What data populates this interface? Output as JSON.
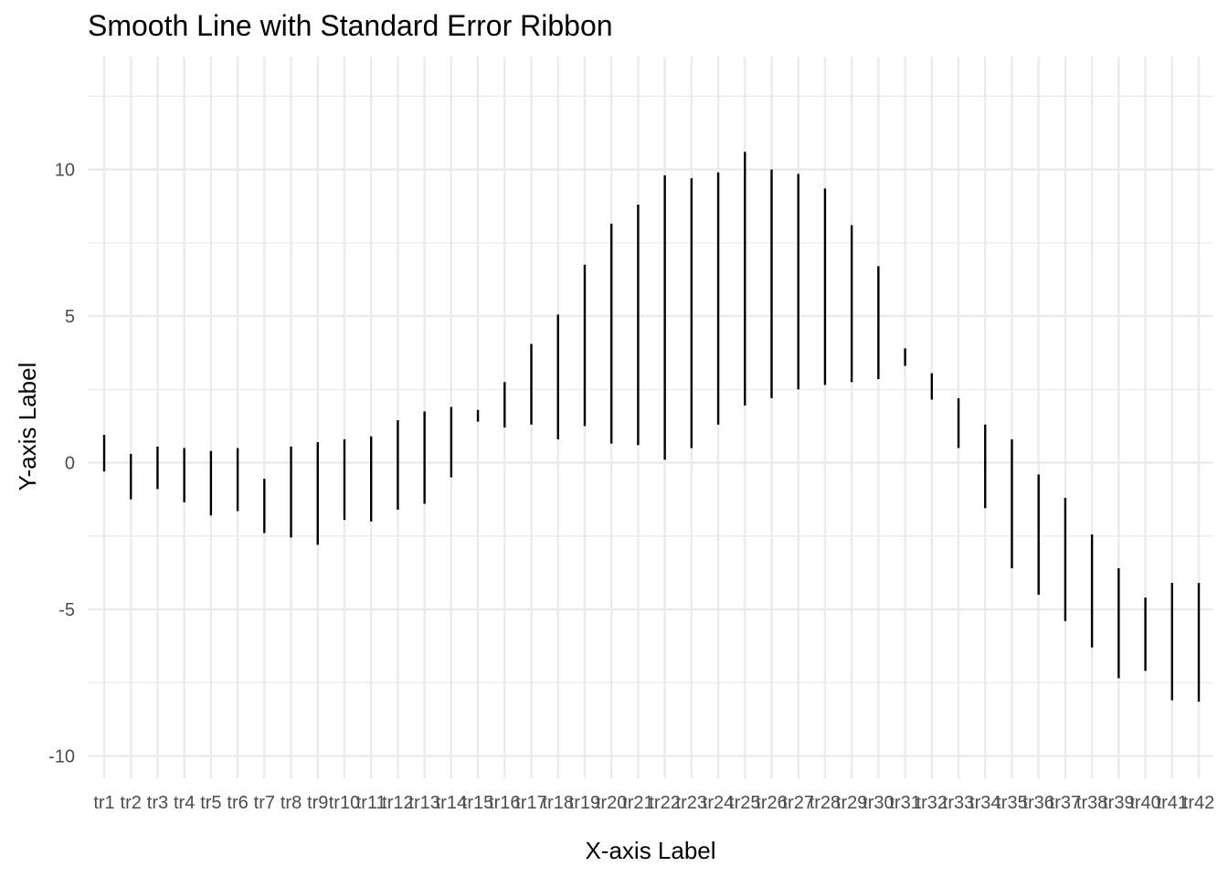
{
  "chart_data": {
    "type": "errorbar",
    "title": "Smooth Line with Standard Error Ribbon",
    "xlabel": "X-axis Label",
    "ylabel": "Y-axis Label",
    "ylim": [
      -11.2,
      13.1
    ],
    "yticks": [
      -10,
      -5,
      0,
      5,
      10
    ],
    "grid": true,
    "categories": [
      "tr1",
      "tr2",
      "tr3",
      "tr4",
      "tr5",
      "tr6",
      "tr7",
      "tr8",
      "tr9",
      "tr10",
      "tr11",
      "tr12",
      "tr13",
      "tr14",
      "tr15",
      "tr16",
      "tr17",
      "tr18",
      "tr19",
      "tr20",
      "tr21",
      "tr22",
      "tr23",
      "tr24",
      "tr25",
      "tr26",
      "tr27",
      "tr28",
      "tr29",
      "tr30",
      "tr31",
      "tr32",
      "tr33",
      "tr34",
      "tr35",
      "tr36",
      "tr37",
      "tr38",
      "tr39",
      "tr40",
      "tr41",
      "tr42"
    ],
    "lower": [
      -0.3,
      -1.25,
      -0.9,
      -1.35,
      -1.8,
      -1.65,
      -2.4,
      -2.55,
      -2.8,
      -1.95,
      -2.0,
      -1.6,
      -1.4,
      -0.5,
      1.4,
      1.2,
      1.3,
      0.8,
      1.25,
      0.65,
      0.6,
      0.1,
      0.5,
      1.3,
      1.95,
      2.2,
      2.5,
      2.65,
      2.75,
      2.85,
      3.3,
      2.15,
      0.5,
      -1.55,
      -3.6,
      -4.5,
      -5.4,
      -6.3,
      -7.35,
      -7.1,
      -8.1,
      -8.15
    ],
    "upper": [
      0.95,
      0.3,
      0.55,
      0.5,
      0.4,
      0.5,
      -0.55,
      0.55,
      0.7,
      0.8,
      0.9,
      1.45,
      1.75,
      1.9,
      1.8,
      2.75,
      4.05,
      5.05,
      6.75,
      8.15,
      8.8,
      9.8,
      9.7,
      9.9,
      10.6,
      10.0,
      9.85,
      9.35,
      8.1,
      6.7,
      3.9,
      3.05,
      2.2,
      1.3,
      0.8,
      -0.4,
      -1.2,
      -2.45,
      -3.6,
      -4.6,
      -4.1,
      -4.1
    ]
  }
}
